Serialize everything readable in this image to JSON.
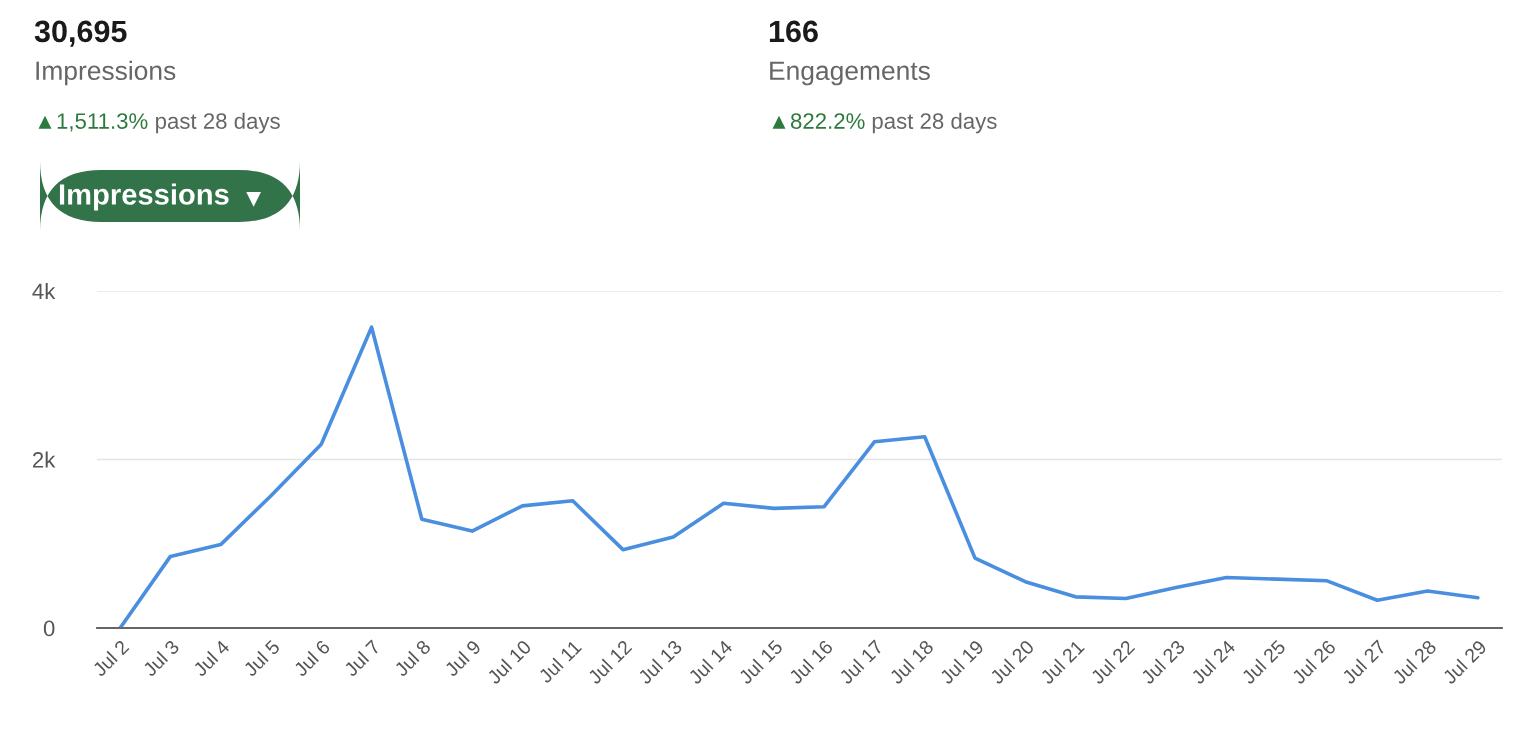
{
  "chart_data": {
    "type": "line",
    "annotations": [
      "30,695",
      "Impressions",
      "▲1,511.3%",
      "past 28 days",
      "166",
      "Engagements",
      "▲822.2%",
      "past 28 days",
      "Impressions"
    ],
    "categories": [
      "Jul 2",
      "Jul 3",
      "Jul 4",
      "Jul 5",
      "Jul 6",
      "Jul 7",
      "Jul 8",
      "Jul 9",
      "Jul 10",
      "Jul 11",
      "Jul 12",
      "Jul 13",
      "Jul 14",
      "Jul 15",
      "Jul 16",
      "Jul 17",
      "Jul 18",
      "Jul 19",
      "Jul 20",
      "Jul 21",
      "Jul 22",
      "Jul 23",
      "Jul 24",
      "Jul 25",
      "Jul 26",
      "Jul 27",
      "Jul 28",
      "Jul 29"
    ],
    "series": [
      {
        "color": "#4a8ee0",
        "values": [
          0,
          850,
          990,
          1570,
          2180,
          3570,
          1290,
          1150,
          1450,
          1510,
          930,
          1080,
          1480,
          1420,
          1440,
          2210,
          2270,
          830,
          550,
          370,
          350,
          480,
          600,
          580,
          560,
          330,
          440,
          360
        ]
      }
    ],
    "ylim": [
      0,
      4000
    ],
    "yticks": [
      0,
      {
        "value": 2000,
        "label": "2k"
      },
      {
        "value": 4000,
        "label": "4k"
      }
    ],
    "grid": "y",
    "legend": false,
    "marker": "none",
    "line_style": "solid"
  }
}
